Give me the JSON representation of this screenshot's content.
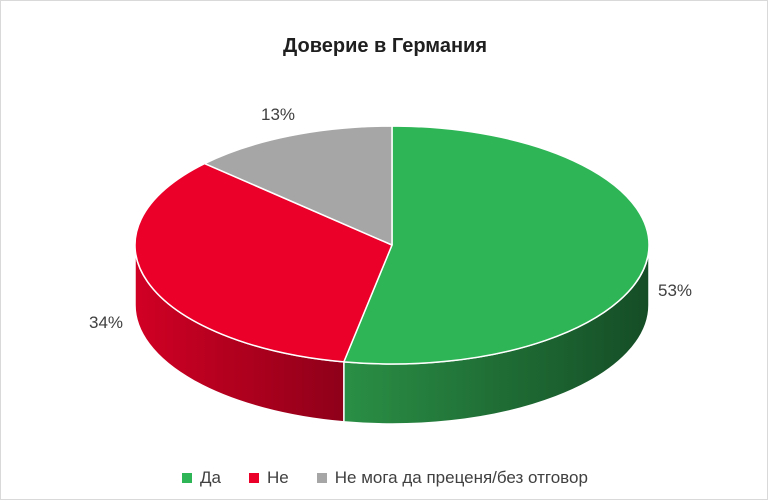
{
  "chart_data": {
    "type": "pie",
    "title": "Доверие в Германия",
    "categories": [
      "Да",
      "Не",
      "Не мога да преценя/без отговор"
    ],
    "values": [
      53,
      34,
      13
    ],
    "labels": [
      "53%",
      "34%",
      "13%"
    ],
    "colors": [
      "#2eb556",
      "#ea0029",
      "#a6a6a6"
    ],
    "side_colors": [
      "#1d6e33",
      "#a8001d",
      "#7a7a7a"
    ],
    "style": "3d",
    "legend": "bottom"
  }
}
